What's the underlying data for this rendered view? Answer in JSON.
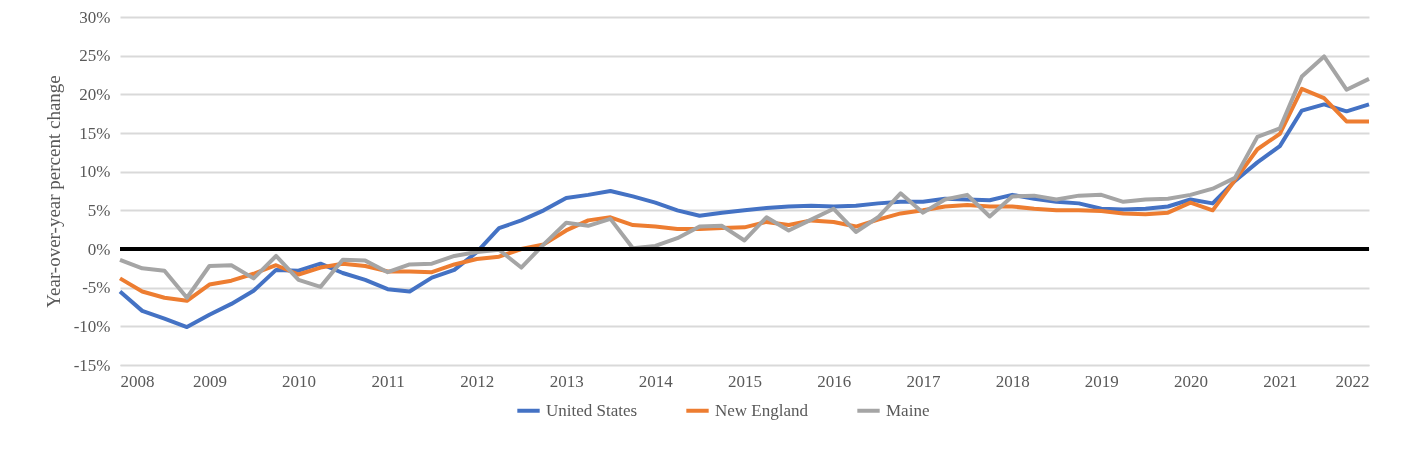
{
  "chart_data": {
    "type": "line",
    "ylabel": "Year-over-year percent change",
    "x": [
      "2008-01",
      "2008-04",
      "2008-07",
      "2008-10",
      "2009-01",
      "2009-04",
      "2009-07",
      "2009-10",
      "2010-01",
      "2010-04",
      "2010-07",
      "2010-10",
      "2011-01",
      "2011-04",
      "2011-07",
      "2011-10",
      "2012-01",
      "2012-04",
      "2012-07",
      "2012-10",
      "2013-01",
      "2013-04",
      "2013-07",
      "2013-10",
      "2014-01",
      "2014-04",
      "2014-07",
      "2014-10",
      "2015-01",
      "2015-04",
      "2015-07",
      "2015-10",
      "2016-01",
      "2016-04",
      "2016-07",
      "2016-10",
      "2017-01",
      "2017-04",
      "2017-07",
      "2017-10",
      "2018-01",
      "2018-04",
      "2018-07",
      "2018-10",
      "2019-01",
      "2019-04",
      "2019-07",
      "2019-10",
      "2020-01",
      "2020-04",
      "2020-07",
      "2020-10",
      "2021-01",
      "2021-04",
      "2021-07",
      "2021-10",
      "2022-01"
    ],
    "series": [
      {
        "name": "United States",
        "color": "#4472c4",
        "values": [
          -5.5,
          -8.0,
          -9.0,
          -10.1,
          -8.5,
          -7.1,
          -5.4,
          -2.7,
          -2.8,
          -1.9,
          -3.1,
          -4.0,
          -5.2,
          -5.5,
          -3.7,
          -2.7,
          -0.4,
          2.7,
          3.7,
          5.0,
          6.6,
          7.0,
          7.5,
          6.8,
          6.0,
          5.0,
          4.3,
          4.7,
          5.0,
          5.3,
          5.5,
          5.6,
          5.5,
          5.6,
          5.9,
          6.1,
          6.1,
          6.5,
          6.4,
          6.3,
          7.0,
          6.5,
          6.1,
          5.9,
          5.2,
          5.1,
          5.2,
          5.5,
          6.4,
          5.9,
          8.8,
          11.2,
          13.3,
          17.9,
          18.7,
          17.8,
          18.7
        ]
      },
      {
        "name": "New England",
        "color": "#ed7d31",
        "values": [
          -3.8,
          -5.5,
          -6.3,
          -6.7,
          -4.6,
          -4.1,
          -3.2,
          -2.1,
          -3.3,
          -2.4,
          -1.9,
          -2.2,
          -2.9,
          -2.9,
          -3.0,
          -2.0,
          -1.3,
          -1.0,
          0,
          0.6,
          2.4,
          3.7,
          4.1,
          3.1,
          2.9,
          2.6,
          2.6,
          2.7,
          2.8,
          3.5,
          3.1,
          3.7,
          3.5,
          2.9,
          3.8,
          4.6,
          5.0,
          5.5,
          5.7,
          5.5,
          5.5,
          5.2,
          5.0,
          5.0,
          4.9,
          4.6,
          4.5,
          4.7,
          6.0,
          5.0,
          8.9,
          12.9,
          14.9,
          20.7,
          19.5,
          16.5,
          16.5
        ]
      },
      {
        "name": "Maine",
        "color": "#a5a5a5",
        "values": [
          -1.4,
          -2.5,
          -2.8,
          -6.3,
          -2.2,
          -2.1,
          -3.8,
          -0.9,
          -4.0,
          -4.9,
          -1.4,
          -1.5,
          -3.0,
          -2.0,
          -1.9,
          -0.9,
          -0.4,
          -0.1,
          -2.4,
          0.6,
          3.4,
          3.0,
          3.9,
          0.1,
          0.4,
          1.4,
          2.9,
          3.0,
          1.1,
          4.1,
          2.4,
          3.8,
          5.2,
          2.2,
          4.1,
          7.2,
          4.7,
          6.4,
          7.0,
          4.2,
          6.8,
          6.9,
          6.4,
          6.9,
          7.0,
          6.1,
          6.4,
          6.5,
          7.0,
          7.8,
          9.2,
          14.5,
          15.6,
          22.3,
          24.9,
          20.6,
          22.0
        ]
      }
    ],
    "xlim": [
      "2008-01",
      "2022-01"
    ],
    "xticks": [
      "2008",
      "2009",
      "2010",
      "2011",
      "2012",
      "2013",
      "2014",
      "2015",
      "2016",
      "2017",
      "2018",
      "2019",
      "2020",
      "2021",
      "2022"
    ],
    "ylim": [
      -15,
      30
    ],
    "yticks": [
      {
        "value": -15,
        "label": "-15%"
      },
      {
        "value": -10,
        "label": "-10%"
      },
      {
        "value": -5,
        "label": "-5%"
      },
      {
        "value": 0,
        "label": "0%"
      },
      {
        "value": 5,
        "label": "5%"
      },
      {
        "value": 10,
        "label": "10%"
      },
      {
        "value": 15,
        "label": "15%"
      },
      {
        "value": 20,
        "label": "20%"
      },
      {
        "value": 25,
        "label": "25%"
      },
      {
        "value": 30,
        "label": "30%"
      }
    ],
    "ref_lines": [
      {
        "axis": "y",
        "value": 0,
        "color": "#000000"
      }
    ],
    "grid": "y",
    "legend": "bottom",
    "line_style": "solid",
    "marker": "none"
  }
}
